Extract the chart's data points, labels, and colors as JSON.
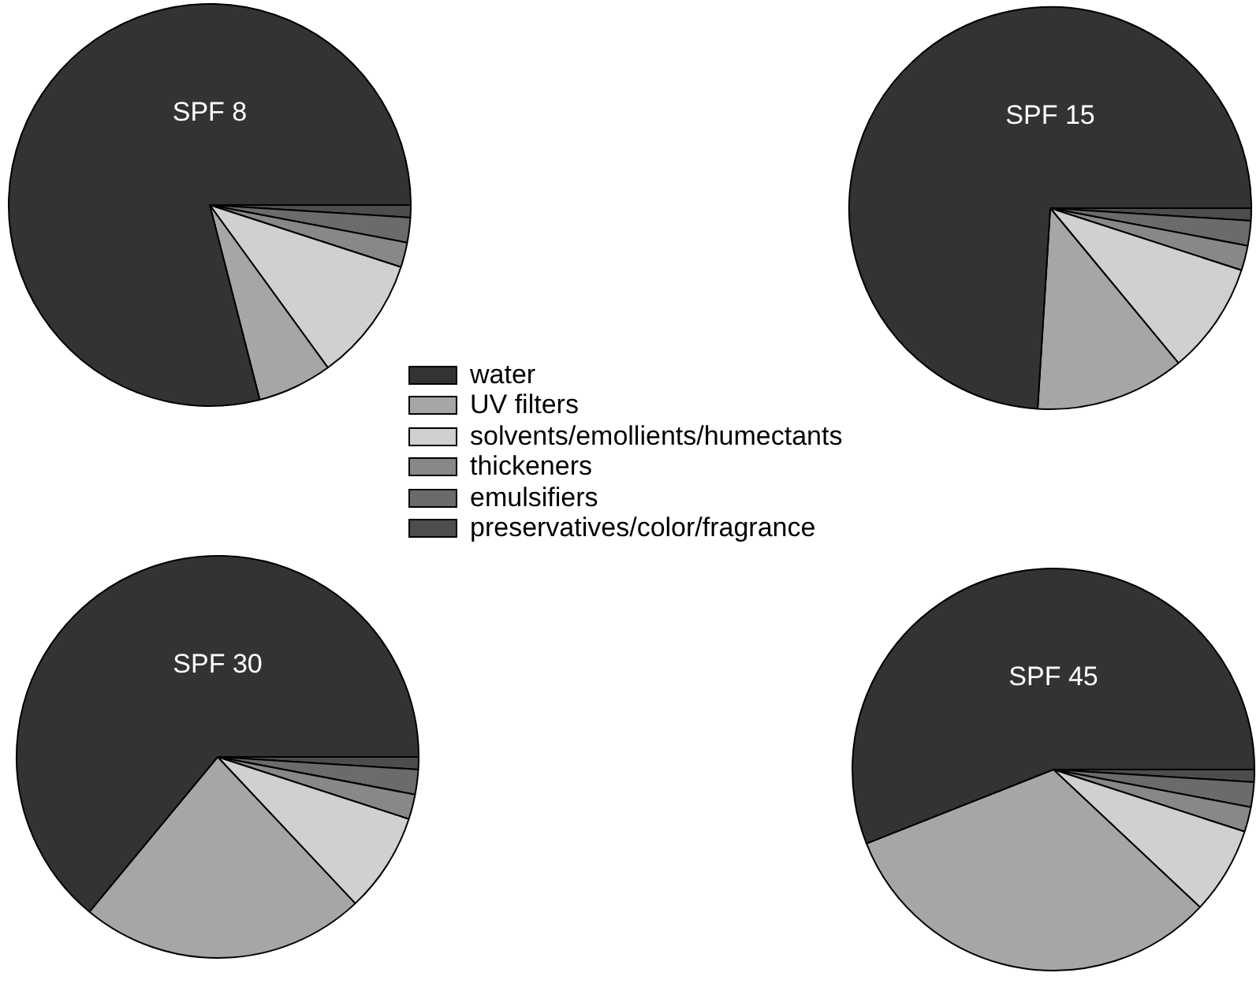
{
  "chart_data": [
    {
      "type": "pie",
      "title": "SPF 8",
      "legend": "bottom right",
      "categories": [
        "water",
        "UV filters",
        "solvents/emollients/humectants",
        "thickeners",
        "emulsifiers",
        "preservatives/color/fragrance"
      ],
      "values": [
        79,
        6,
        10,
        2,
        2,
        1
      ],
      "colors": [
        "#333333",
        "#a6a6a6",
        "#d0d0d0",
        "#888888",
        "#6b6b6b",
        "#4d4d4d"
      ]
    },
    {
      "type": "pie",
      "title": "SPF 15",
      "values": [
        74,
        12,
        9,
        2,
        2,
        1
      ],
      "colors": [
        "#333333",
        "#a6a6a6",
        "#d0d0d0",
        "#888888",
        "#6b6b6b",
        "#4d4d4d"
      ]
    },
    {
      "type": "pie",
      "title": "SPF 30",
      "values": [
        64,
        23,
        8,
        2,
        2,
        1
      ],
      "colors": [
        "#333333",
        "#a6a6a6",
        "#d0d0d0",
        "#888888",
        "#6b6b6b",
        "#4d4d4d"
      ]
    },
    {
      "type": "pie",
      "title": "SPF 45",
      "values": [
        56,
        32,
        7,
        2,
        2,
        1
      ],
      "colors": [
        "#333333",
        "#a6a6a6",
        "#d0d0d0",
        "#888888",
        "#6b6b6b",
        "#4d4d4d"
      ]
    }
  ]
}
